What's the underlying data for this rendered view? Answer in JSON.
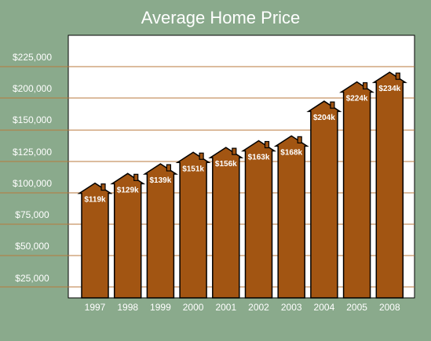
{
  "chart_data": {
    "type": "bar",
    "title": "Average Home Price",
    "xlabel": "",
    "ylabel": "",
    "categories": [
      "1997",
      "1998",
      "1999",
      "2000",
      "2001",
      "2002",
      "2003",
      "2004",
      "2005",
      "2008"
    ],
    "values": [
      119,
      129,
      139,
      151,
      156,
      163,
      168,
      204,
      224,
      234
    ],
    "value_unit": "thousands of dollars",
    "data_labels": [
      "$119k",
      "$129k",
      "$139k",
      "$151k",
      "$156k",
      "$163k",
      "$168k",
      "$204k",
      "$224k",
      "$234k"
    ],
    "y_tick_labels": [
      "$25,000",
      "$50,000",
      "$75,000",
      "$100,000",
      "$125,000",
      "$150,000",
      "$200,000",
      "$225,000"
    ],
    "grid": true,
    "legend": "none",
    "bar_shape": "house-icon"
  },
  "colors": {
    "background": "#8aaa8c",
    "plot_background": "#ffffff",
    "bar_fill": "#a25512",
    "bar_outline": "#000000",
    "grid_line": "#b87a3c",
    "text": "#ffffff"
  }
}
